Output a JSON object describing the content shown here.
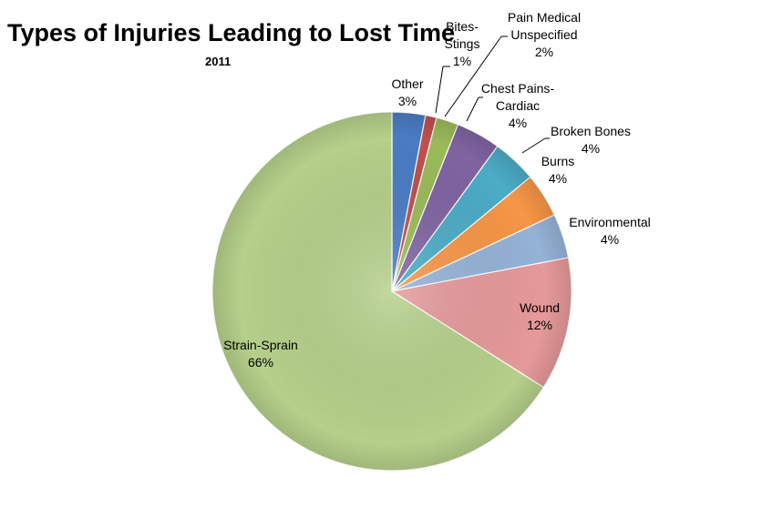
{
  "chart_data": {
    "type": "pie",
    "title": "Types of Injuries Leading to Lost Time",
    "subtitle": "2011",
    "start_angle_deg": 90,
    "direction": "clockwise",
    "slices": [
      {
        "label": "Other",
        "label_lines": [
          "Other"
        ],
        "value": 3,
        "pct_label": "3%",
        "color": "#4a7cc4"
      },
      {
        "label": "Bites-Stings",
        "label_lines": [
          "Bites-",
          "Stings"
        ],
        "value": 1,
        "pct_label": "1%",
        "color": "#c0504d"
      },
      {
        "label": "Pain Medical Unspecified",
        "label_lines": [
          "Pain Medical",
          "Unspecified"
        ],
        "value": 2,
        "pct_label": "2%",
        "color": "#9bbb59"
      },
      {
        "label": "Chest Pains-Cardiac",
        "label_lines": [
          "Chest Pains-",
          "Cardiac"
        ],
        "value": 4,
        "pct_label": "4%",
        "color": "#8064a2"
      },
      {
        "label": "Broken Bones",
        "label_lines": [
          "Broken Bones"
        ],
        "value": 4,
        "pct_label": "4%",
        "color": "#4bacc6"
      },
      {
        "label": "Burns",
        "label_lines": [
          "Burns"
        ],
        "value": 4,
        "pct_label": "4%",
        "color": "#f79646"
      },
      {
        "label": "Environmental",
        "label_lines": [
          "Environmental"
        ],
        "value": 4,
        "pct_label": "4%",
        "color": "#95b3d7"
      },
      {
        "label": "Wound",
        "label_lines": [
          "Wound"
        ],
        "value": 12,
        "pct_label": "12%",
        "color": "#e6999a"
      },
      {
        "label": "Strain-Sprain",
        "label_lines": [
          "Strain-Sprain"
        ],
        "value": 66,
        "pct_label": "66%",
        "color": "#b5d08a"
      }
    ]
  }
}
